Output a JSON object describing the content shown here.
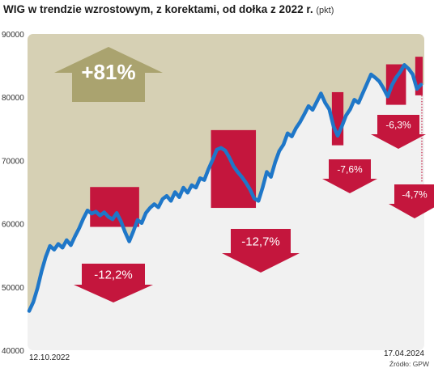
{
  "header": {
    "title": "WIG w trendzie wzrostowym, z korektami, od dołka z 2022 r.",
    "unit": "(pkt)"
  },
  "source": "Źródło: GPW",
  "colors": {
    "line": "#1f77c8",
    "area_fill": "#d6d0b4",
    "plot_bg": "#f1f1f1",
    "correction_box": "#c4163d",
    "gain_arrow": "#aaa36f"
  },
  "chart_data": {
    "type": "line",
    "title": "WIG w trendzie wzrostowym, z korektami, od dołka z 2022 r.",
    "unit": "(pkt)",
    "ylim": [
      40000,
      90000
    ],
    "yticks": [
      "40000",
      "50000",
      "60000",
      "70000",
      "80000",
      "90000"
    ],
    "x_start_label": "12.10.2022",
    "x_end_label": "17.04.2024",
    "grid": false,
    "series": [
      {
        "values": [
          46200,
          47600,
          49800,
          52500,
          54800,
          56500,
          55900,
          56800,
          56200,
          57400,
          56600,
          58000,
          59300,
          60800,
          62100,
          61600,
          61900,
          61300,
          61800,
          61100,
          60700,
          61700,
          60400,
          58700,
          57200,
          58800,
          60600,
          60100,
          61700,
          62500,
          63100,
          62600,
          63900,
          64400,
          63600,
          65000,
          64200,
          65700,
          64900,
          66100,
          65700,
          67200,
          66900,
          68600,
          70100,
          71700,
          72000,
          71600,
          70500,
          69100,
          68200,
          67400,
          66500,
          65400,
          64000,
          63600,
          65700,
          68200,
          67400,
          69700,
          71500,
          72500,
          74300,
          73800,
          75100,
          76100,
          77300,
          78600,
          78000,
          79300,
          80600,
          79100,
          78100,
          75400,
          73900,
          75400,
          77100,
          78100,
          79600,
          79100,
          80600,
          82100,
          83600,
          83100,
          82500,
          81400,
          80100,
          81900,
          83100,
          84000,
          85100,
          84500,
          83600,
          81300,
          82000
        ]
      }
    ],
    "total_gain": "+81%",
    "corrections": [
      "-12,2%",
      "-12,7%",
      "-7,6%",
      "-6,3%",
      "-4,7%"
    ]
  }
}
